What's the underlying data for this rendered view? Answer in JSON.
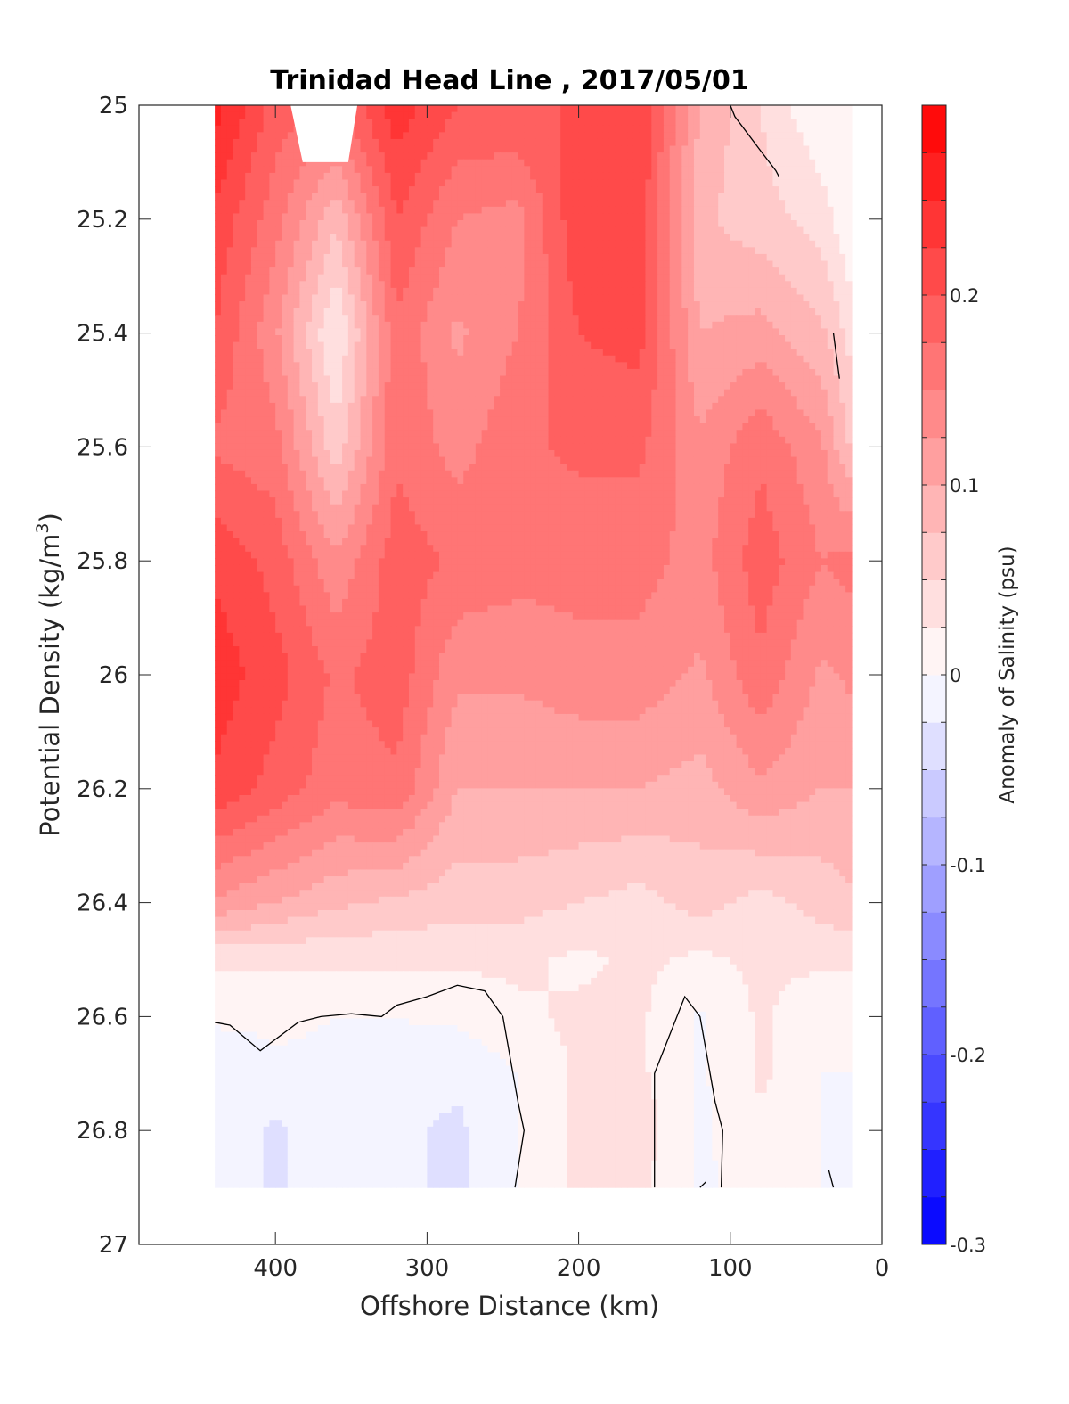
{
  "chart_data": {
    "type": "heatmap",
    "title": "Trinidad Head Line , 2017/05/01",
    "xlabel": "Offshore Distance (km)",
    "ylabel": "Potential Density (kg/m",
    "ylabel_sup": "3",
    "ylabel_close": ")",
    "xlim": [
      490,
      0
    ],
    "ylim": [
      25,
      27
    ],
    "y_reversed": true,
    "x_ticks": [
      "400",
      "300",
      "200",
      "100",
      "0"
    ],
    "y_ticks": [
      "25",
      "25.2",
      "25.4",
      "25.6",
      "25.8",
      "26",
      "26.2",
      "26.4",
      "26.6",
      "26.8",
      "27"
    ],
    "colorbar": {
      "label": "Anomaly of Salinity (psu)",
      "range": [
        -0.3,
        0.3
      ],
      "levels": 24,
      "ticks": [
        "0.2",
        "0.1",
        "0",
        "-0.1",
        "-0.2",
        "-0.3"
      ]
    },
    "x": [
      440,
      400,
      360,
      320,
      280,
      240,
      200,
      160,
      120,
      80,
      40,
      20
    ],
    "y": [
      25.0,
      25.2,
      25.4,
      25.6,
      25.8,
      26.0,
      26.2,
      26.4,
      26.5,
      26.6,
      26.7,
      26.8,
      26.9
    ],
    "z": [
      [
        0.26,
        0.19,
        0.17,
        0.24,
        0.2,
        0.2,
        0.2,
        0.22,
        0.1,
        0.05,
        0.0,
        0.0
      ],
      [
        0.22,
        0.16,
        0.08,
        0.2,
        0.15,
        0.14,
        0.22,
        0.22,
        0.08,
        0.06,
        0.04,
        0.0
      ],
      [
        0.2,
        0.13,
        0.02,
        0.17,
        0.12,
        0.15,
        0.2,
        0.21,
        0.1,
        0.11,
        0.08,
        0.04
      ],
      [
        0.17,
        0.16,
        0.06,
        0.17,
        0.14,
        0.17,
        0.18,
        0.18,
        0.13,
        0.17,
        0.13,
        0.07
      ],
      [
        0.22,
        0.19,
        0.13,
        0.19,
        0.17,
        0.16,
        0.16,
        0.16,
        0.14,
        0.19,
        0.15,
        0.16
      ],
      [
        0.24,
        0.21,
        0.17,
        0.19,
        0.13,
        0.13,
        0.14,
        0.14,
        0.12,
        0.17,
        0.12,
        0.13
      ],
      [
        0.22,
        0.19,
        0.16,
        0.17,
        0.1,
        0.1,
        0.1,
        0.1,
        0.09,
        0.12,
        0.1,
        0.1
      ],
      [
        0.12,
        0.1,
        0.08,
        0.07,
        0.06,
        0.06,
        0.05,
        0.04,
        0.06,
        0.04,
        0.06,
        0.07
      ],
      [
        0.03,
        0.03,
        0.03,
        0.03,
        0.03,
        0.03,
        0.02,
        0.03,
        0.02,
        0.03,
        0.03,
        0.03
      ],
      [
        0.005,
        0.005,
        0.0,
        0.0,
        0.005,
        0.02,
        0.03,
        0.03,
        -0.005,
        0.03,
        0.005,
        0.0
      ],
      [
        -0.02,
        -0.005,
        -0.005,
        -0.01,
        -0.02,
        0.0,
        0.03,
        0.03,
        -0.005,
        0.03,
        0.0,
        0.0
      ],
      [
        -0.005,
        -0.03,
        -0.005,
        -0.02,
        -0.03,
        0.0,
        0.03,
        0.04,
        -0.005,
        0.02,
        0.0,
        -0.005
      ],
      [
        -0.005,
        -0.03,
        -0.005,
        -0.02,
        -0.03,
        0.0,
        0.03,
        0.03,
        -0.005,
        0.01,
        0.0,
        -0.005
      ]
    ],
    "zero_contours": [
      [
        [
          440,
          26.61
        ],
        [
          430,
          26.615
        ],
        [
          410,
          26.66
        ],
        [
          385,
          26.61
        ],
        [
          370,
          26.6
        ],
        [
          350,
          26.595
        ],
        [
          330,
          26.6
        ],
        [
          320,
          26.58
        ],
        [
          300,
          26.565
        ],
        [
          280,
          26.545
        ],
        [
          262,
          26.555
        ],
        [
          250,
          26.6
        ],
        [
          240,
          26.75
        ],
        [
          236,
          26.8
        ],
        [
          242,
          26.9
        ]
      ],
      [
        [
          150,
          26.9
        ],
        [
          150,
          26.7
        ],
        [
          130,
          26.565
        ],
        [
          120,
          26.6
        ],
        [
          110,
          26.75
        ],
        [
          105,
          26.8
        ],
        [
          106,
          26.9
        ]
      ],
      [
        [
          120,
          26.9
        ],
        [
          116,
          26.89
        ]
      ],
      [
        [
          100,
          25.0
        ],
        [
          97,
          25.02
        ],
        [
          80,
          25.08
        ],
        [
          70,
          25.115
        ],
        [
          68,
          25.125
        ]
      ],
      [
        [
          32,
          25.4
        ],
        [
          28,
          25.48
        ]
      ],
      [
        [
          35,
          26.87
        ],
        [
          32,
          26.9
        ]
      ]
    ],
    "no_data_regions": [
      [
        [
          390,
          25.0
        ],
        [
          346,
          25.0
        ],
        [
          352,
          25.1
        ],
        [
          382,
          25.1
        ]
      ]
    ],
    "grid": false
  }
}
